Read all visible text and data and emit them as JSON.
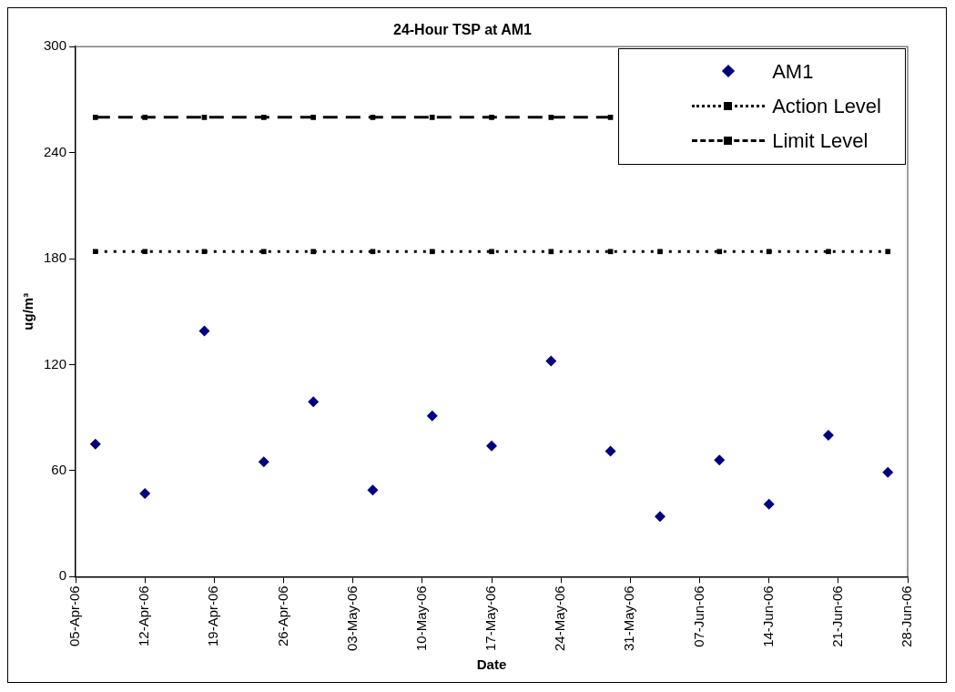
{
  "chart_data": {
    "type": "scatter",
    "title": "24-Hour TSP at AM1",
    "xlabel": "Date",
    "ylabel": "ug/m³",
    "x": [
      "--04-07",
      "--04-12",
      "--04-18",
      "--04-24",
      "--04-29",
      "--05-05",
      "--05-11",
      "--05-17",
      "--05-23",
      "--05-29",
      "--06-03",
      "--06-09",
      "--06-14",
      "--06-20",
      "--06-26"
    ],
    "series": [
      {
        "name": "AM1",
        "type": "scatter",
        "marker": "diamond",
        "color": "#000080",
        "values": [
          75,
          47,
          139,
          65,
          99,
          49,
          91,
          74,
          122,
          71,
          34,
          66,
          41,
          80,
          59
        ]
      },
      {
        "name": "Action Level",
        "type": "line",
        "marker": "square",
        "line_style": "dotted",
        "color": "#000000",
        "values": [
          184,
          184,
          184,
          184,
          184,
          184,
          184,
          184,
          184,
          184,
          184,
          184,
          184,
          184,
          184
        ]
      },
      {
        "name": "Limit Level",
        "type": "line",
        "marker": "square",
        "line_style": "dashed",
        "color": "#000000",
        "values": [
          260,
          260,
          260,
          260,
          260,
          260,
          260,
          260,
          260,
          260,
          null,
          null,
          null,
          null,
          null
        ]
      }
    ],
    "xlim": [
      "--04-05",
      "--06-28"
    ],
    "xticks": [
      {
        "value": "--04-05",
        "label": "05-Apr-06"
      },
      {
        "value": "--04-12",
        "label": "12-Apr-06"
      },
      {
        "value": "--04-19",
        "label": "19-Apr-06"
      },
      {
        "value": "--04-26",
        "label": "26-Apr-06"
      },
      {
        "value": "--05-03",
        "label": "03-May-06"
      },
      {
        "value": "--05-10",
        "label": "10-May-06"
      },
      {
        "value": "--05-17",
        "label": "17-May-06"
      },
      {
        "value": "--05-24",
        "label": "24-May-06"
      },
      {
        "value": "--05-31",
        "label": "31-May-06"
      },
      {
        "value": "--06-07",
        "label": "07-Jun-06"
      },
      {
        "value": "--06-14",
        "label": "14-Jun-06"
      },
      {
        "value": "--06-21",
        "label": "21-Jun-06"
      },
      {
        "value": "--06-28",
        "label": "28-Jun-06"
      }
    ],
    "ylim": [
      0,
      300
    ],
    "yticks": [
      0,
      60,
      120,
      180,
      240,
      300
    ],
    "grid": false,
    "legend": "top right"
  }
}
